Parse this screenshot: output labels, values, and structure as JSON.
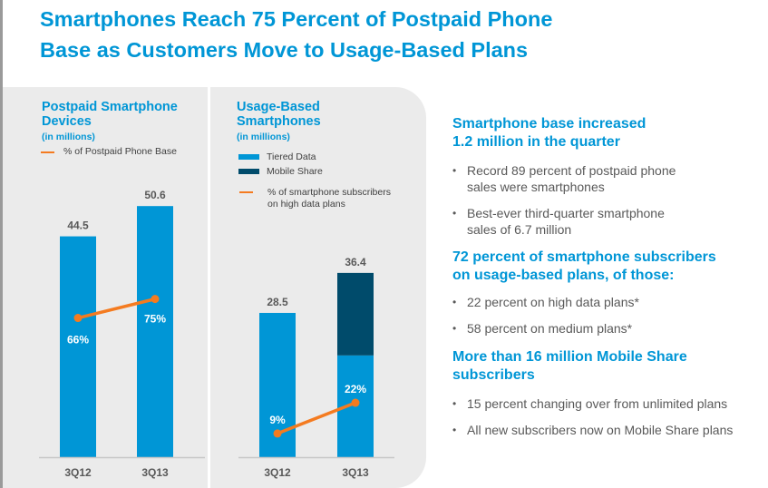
{
  "title": [
    "Smartphones Reach 75 Percent of Postpaid Phone",
    "Base as Customers Move to Usage-Based Plans"
  ],
  "colors": {
    "accent": "#0096d6",
    "tiered": "#0096d6",
    "mobile_share": "#004b6b",
    "line": "#f47b20",
    "text": "#595959"
  },
  "chart_data": [
    {
      "type": "bar",
      "title": [
        "Postpaid Smartphone",
        "Devices"
      ],
      "subtitle": "(in millions)",
      "categories": [
        "3Q12",
        "3Q13"
      ],
      "series": [
        {
          "name": "",
          "values": [
            44.5,
            50.6
          ]
        }
      ],
      "line_series": {
        "name": "% of Postpaid Phone Base",
        "values": [
          66,
          75
        ],
        "labels": [
          "66%",
          "75%"
        ]
      },
      "value_labels": [
        "44.5",
        "50.6"
      ],
      "ylim": [
        0,
        51
      ],
      "y2lim": [
        0,
        120
      ],
      "grid": false,
      "legend": "top-left"
    },
    {
      "type": "bar",
      "stacked": true,
      "title": [
        "Usage-Based",
        "Smartphones"
      ],
      "subtitle": "(in millions)",
      "categories": [
        "3Q12",
        "3Q13"
      ],
      "series": [
        {
          "name": "Tiered Data",
          "values": [
            28.5,
            20.1
          ]
        },
        {
          "name": "Mobile Share",
          "values": [
            0,
            16.3
          ]
        }
      ],
      "line_series": {
        "name": [
          "% of smartphone subscribers",
          "on high data plans"
        ],
        "values": [
          9,
          22
        ],
        "labels": [
          "9%",
          "22%"
        ]
      },
      "value_labels": [
        "28.5",
        "36.4"
      ],
      "ylim": [
        0,
        50
      ],
      "y2lim": [
        -1,
        106
      ],
      "grid": false,
      "legend": "top-left"
    }
  ],
  "right": [
    {
      "heading": [
        "Smartphone base increased",
        "1.2 million in the quarter"
      ],
      "bullets": [
        [
          "Record 89 percent of postpaid phone",
          "sales were smartphones"
        ],
        [
          "Best-ever third-quarter smartphone",
          "sales of 6.7 million"
        ]
      ]
    },
    {
      "heading": [
        "72 percent of smartphone subscribers",
        "on usage-based plans, of those:"
      ],
      "bullets": [
        [
          "22 percent on high data plans*"
        ],
        [
          "58 percent on medium plans*"
        ]
      ]
    },
    {
      "heading": [
        "More than 16 million Mobile Share",
        "subscribers"
      ],
      "bullets": [
        [
          "15 percent changing over from unlimited plans"
        ],
        [
          "All new subscribers now on Mobile Share plans"
        ]
      ]
    }
  ]
}
